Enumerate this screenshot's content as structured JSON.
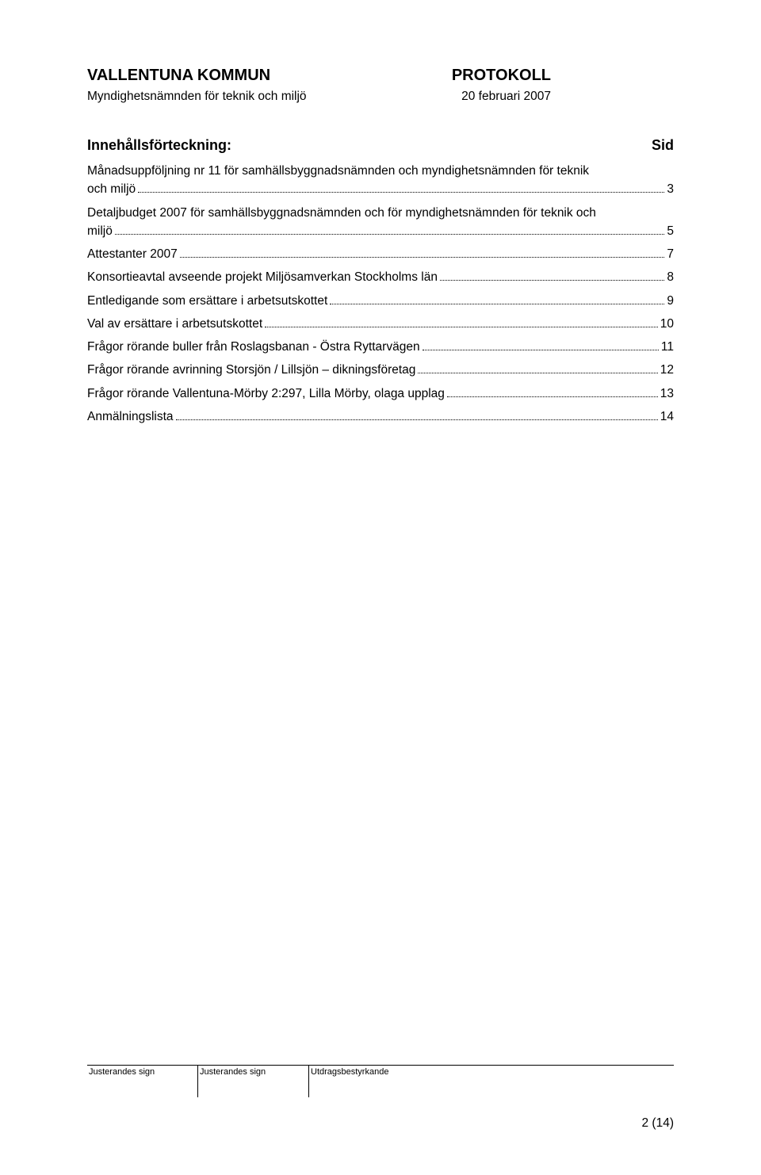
{
  "header": {
    "org": "VALLENTUNA KOMMUN",
    "doc_type": "PROTOKOLL",
    "committee": "Myndighetsnämnden för teknik och miljö",
    "date": "20 februari 2007"
  },
  "toc": {
    "title": "Innehållsförteckning:",
    "sid_label": "Sid",
    "entries": [
      {
        "text_lines": [
          "Månadsuppföljning nr 11 för samhällsbyggnadsnämnden och myndighetsnämnden för teknik",
          "och miljö"
        ],
        "page": "3"
      },
      {
        "text_lines": [
          "Detaljbudget 2007 för samhällsbyggnadsnämnden och för myndighetsnämnden för teknik och",
          "miljö"
        ],
        "page": "5"
      },
      {
        "text_lines": [
          "Attestanter 2007"
        ],
        "page": "7"
      },
      {
        "text_lines": [
          "Konsortieavtal avseende projekt Miljösamverkan Stockholms län"
        ],
        "page": "8"
      },
      {
        "text_lines": [
          "Entledigande som ersättare i arbetsutskottet"
        ],
        "page": "9"
      },
      {
        "text_lines": [
          "Val av ersättare i arbetsutskottet"
        ],
        "page": "10"
      },
      {
        "text_lines": [
          "Frågor rörande buller från Roslagsbanan - Östra Ryttarvägen"
        ],
        "page": "11"
      },
      {
        "text_lines": [
          "Frågor rörande avrinning Storsjön / Lillsjön – dikningsföretag"
        ],
        "page": "12"
      },
      {
        "text_lines": [
          "Frågor rörande Vallentuna-Mörby 2:297, Lilla Mörby, olaga upplag"
        ],
        "page": "13"
      },
      {
        "text_lines": [
          "Anmälningslista"
        ],
        "page": "14"
      }
    ]
  },
  "footer": {
    "cell1": "Justerandes sign",
    "cell2": "Justerandes sign",
    "cell3": "Utdragsbestyrkande"
  },
  "page_number": "2 (14)"
}
